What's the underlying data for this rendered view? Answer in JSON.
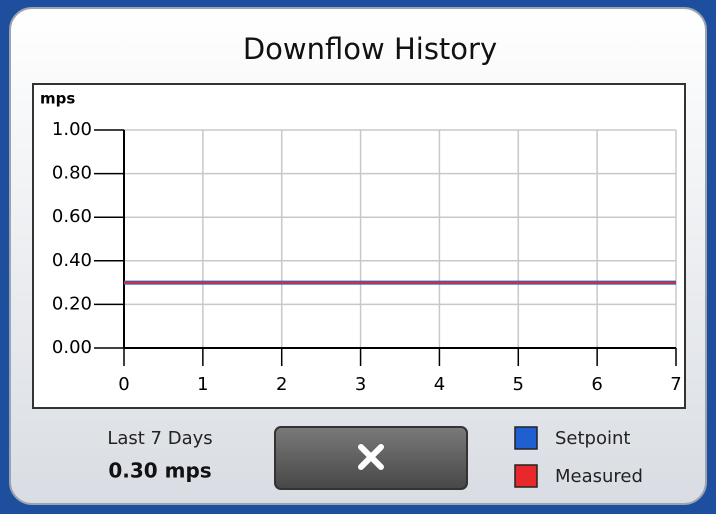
{
  "header": {
    "title": "Downflow History"
  },
  "chart_data": {
    "type": "line",
    "ylabel": "mps",
    "x": [
      0,
      7
    ],
    "series": [
      {
        "name": "Setpoint",
        "color": "#1f5fd0",
        "values": [
          0.3,
          0.3
        ]
      },
      {
        "name": "Measured",
        "color": "#e8282a",
        "values": [
          0.3,
          0.3
        ]
      }
    ],
    "xlim": [
      0,
      7
    ],
    "xticks": [
      0,
      1,
      2,
      3,
      4,
      5,
      6,
      7
    ],
    "ylim": [
      0,
      1
    ],
    "yticks": [
      {
        "value": 0,
        "label": "0.00"
      },
      {
        "value": 0.2,
        "label": "0.20"
      },
      {
        "value": 0.4,
        "label": "0.40"
      },
      {
        "value": 0.6,
        "label": "0.60"
      },
      {
        "value": 0.8,
        "label": "0.80"
      },
      {
        "value": 1,
        "label": "1.00"
      }
    ],
    "grid": true
  },
  "footer": {
    "period": "Last 7 Days",
    "current": "0.30 mps"
  }
}
